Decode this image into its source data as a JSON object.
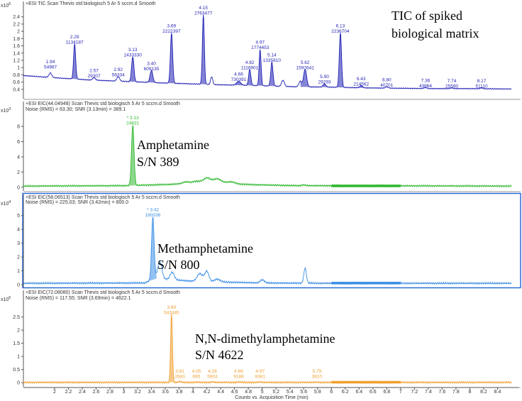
{
  "x_axis": {
    "label": "Counts vs. Acquisition Time (min)",
    "min": 1.55,
    "max": 8.6,
    "ticks": [
      "2",
      "2.2",
      "2.4",
      "2.6",
      "2.8",
      "3",
      "3.2",
      "3.4",
      "3.6",
      "3.8",
      "4",
      "4.2",
      "4.4",
      "4.6",
      "4.8",
      "5",
      "5.2",
      "5.4",
      "5.6",
      "5.8",
      "6",
      "6.2",
      "6.4",
      "6.6",
      "6.8",
      "7",
      "7.2",
      "7.4",
      "7.6",
      "7.8",
      "8",
      "8.2",
      "8.4"
    ]
  },
  "panels": [
    {
      "header": "+ESI TIC Scan Thevis std biologisch 5  Ar 5 sccm.d  Smooth",
      "noise": "",
      "exponent": "x10",
      "exponent_power": "6",
      "color": "#1f1fb4",
      "selected": false,
      "y_ticks": [
        "0.4",
        "0.6",
        "0.8",
        "1",
        "1.2",
        "1.4",
        "1.6",
        "1.8",
        "2",
        "2.2",
        "2.4"
      ],
      "annotation": [
        "TIC  of spiked",
        "biological matrix"
      ],
      "peak_labels": [
        {
          "rt": "1.94",
          "area": "54967"
        },
        {
          "rt": "2.29",
          "area": "1134187"
        },
        {
          "rt": "2.57",
          "area": "29307"
        },
        {
          "rt": "2.92",
          "area": "56334"
        },
        {
          "rt": "3.13",
          "area": "1433330"
        },
        {
          "rt": "3.40",
          "area": "609135"
        },
        {
          "rt": "3.69",
          "area": "2222397"
        },
        {
          "rt": "4.15",
          "area": "2763477"
        },
        {
          "rt": "4.66",
          "area": "730391"
        },
        {
          "rt": "4.82",
          "area": "1116901"
        },
        {
          "rt": "4.97",
          "area": "1774453"
        },
        {
          "rt": "5.14",
          "area": "1335810"
        },
        {
          "rt": "5.62",
          "area": "1592641"
        },
        {
          "rt": "5.90",
          "area": "29293"
        },
        {
          "rt": "6.13",
          "area": "2236704"
        },
        {
          "rt": "6.43",
          "area": "214562"
        },
        {
          "rt": "6.80",
          "area": "40701"
        },
        {
          "rt": "7.36",
          "area": "43864"
        },
        {
          "rt": "7.74",
          "area": "25590"
        },
        {
          "rt": "8.17",
          "area": "51110"
        }
      ]
    },
    {
      "header": "+ESI EIC(44.04948) Scan Thevis std biologisch 5  Ar 5 sccm.d  Smooth",
      "noise": "Noise (RMS) = 63.30; SNR (3.13min) = 389.1",
      "exponent": "x10",
      "exponent_power": "3",
      "color": "#2db82d",
      "selected": false,
      "y_ticks": [
        "0",
        "2",
        "4",
        "6",
        "8"
      ],
      "annotation": [
        "Amphetamine",
        "S/N 389"
      ],
      "peak_labels": [
        {
          "rt": "* 3.13",
          "area": "24631"
        }
      ]
    },
    {
      "header": "+ESI EIC(58.06513) Scan Thevis std biologisch 5  Ar 5 sccm.d  Smooth",
      "noise": "Noise (RMS) = 225.03; SNR (3.42min) = 800.0",
      "exponent": "x10",
      "exponent_power": "4",
      "color": "#3a8ee6",
      "selected": true,
      "y_ticks": [
        "0",
        "1",
        "2",
        "3",
        "4",
        "5"
      ],
      "annotation": [
        "Methamphetamine",
        "S/N 800"
      ],
      "peak_labels": [
        {
          "rt": "* 3.42",
          "area": "180036"
        }
      ]
    },
    {
      "header": "+ESI EIC(72.08080) Scan Thevis std biologisch 5  Ar 5 sccm.d  Smooth",
      "noise": "Noise (RMS) = 117.55; SNR (3.69min) = 4622.1",
      "exponent": "x10",
      "exponent_power": "5",
      "color": "#f0a030",
      "selected": false,
      "y_ticks": [
        "0",
        "0.5",
        "1",
        "1.5",
        "2",
        "2.5"
      ],
      "annotation": [
        "N,N-dimethylamphetamine",
        "S/N 4622"
      ],
      "peak_labels": [
        {
          "rt": "3.69",
          "area": "543345"
        },
        {
          "rt": "3.81",
          "area": "2683"
        },
        {
          "rt": "4.05",
          "area": "895"
        },
        {
          "rt": "4.28",
          "area": "5903"
        },
        {
          "rt": "4.66",
          "area": "9188"
        },
        {
          "rt": "4.97",
          "area": "9381"
        },
        {
          "rt": "5.79",
          "area": "3810"
        }
      ]
    }
  ],
  "chart_data": [
    {
      "type": "line",
      "title": "TIC  of spiked biological matrix",
      "xlabel": "Counts vs. Acquisition Time (min)",
      "ylabel": "",
      "y_unit": "x10^6",
      "ylim": [
        0.3,
        2.55
      ],
      "xlim": [
        1.55,
        8.6
      ],
      "baseline": [
        [
          1.55,
          0.78
        ],
        [
          2.0,
          0.72
        ],
        [
          2.5,
          0.66
        ],
        [
          3.0,
          0.62
        ],
        [
          3.5,
          0.58
        ],
        [
          4.0,
          0.55
        ],
        [
          4.5,
          0.52
        ],
        [
          5.0,
          0.5
        ],
        [
          5.5,
          0.47
        ],
        [
          6.0,
          0.46
        ],
        [
          6.5,
          0.44
        ],
        [
          7.0,
          0.43
        ],
        [
          7.5,
          0.42
        ],
        [
          8.0,
          0.42
        ],
        [
          8.6,
          0.41
        ]
      ],
      "peaks": [
        {
          "x": 1.94,
          "y": 0.85,
          "w": 0.02
        },
        {
          "x": 2.29,
          "y": 1.65,
          "w": 0.015
        },
        {
          "x": 2.57,
          "y": 0.72,
          "w": 0.02
        },
        {
          "x": 2.92,
          "y": 0.75,
          "w": 0.02
        },
        {
          "x": 3.13,
          "y": 1.3,
          "w": 0.017
        },
        {
          "x": 3.4,
          "y": 0.92,
          "w": 0.02
        },
        {
          "x": 3.69,
          "y": 1.95,
          "w": 0.016
        },
        {
          "x": 4.15,
          "y": 2.45,
          "w": 0.014
        },
        {
          "x": 4.27,
          "y": 0.75,
          "w": 0.015
        },
        {
          "x": 4.66,
          "y": 0.62,
          "w": 0.03
        },
        {
          "x": 4.82,
          "y": 0.95,
          "w": 0.016
        },
        {
          "x": 4.97,
          "y": 1.5,
          "w": 0.014
        },
        {
          "x": 5.14,
          "y": 1.15,
          "w": 0.016
        },
        {
          "x": 5.3,
          "y": 0.65,
          "w": 0.02
        },
        {
          "x": 5.55,
          "y": 0.62,
          "w": 0.02
        },
        {
          "x": 5.62,
          "y": 0.95,
          "w": 0.022
        },
        {
          "x": 5.9,
          "y": 0.55,
          "w": 0.02
        },
        {
          "x": 6.13,
          "y": 1.95,
          "w": 0.016
        },
        {
          "x": 6.43,
          "y": 0.5,
          "w": 0.02
        },
        {
          "x": 6.8,
          "y": 0.47,
          "w": 0.02
        },
        {
          "x": 7.36,
          "y": 0.45,
          "w": 0.02
        },
        {
          "x": 7.74,
          "y": 0.44,
          "w": 0.02
        },
        {
          "x": 8.17,
          "y": 0.44,
          "w": 0.02
        }
      ],
      "shaded_peaks": [
        2.29,
        3.13,
        3.4,
        3.69,
        4.15,
        4.66,
        4.82,
        4.97,
        5.14,
        5.62,
        5.9,
        6.13,
        6.43
      ]
    },
    {
      "type": "line",
      "title": "Amphetamine",
      "y_unit": "x10^3",
      "ylim": [
        -0.3,
        9.6
      ],
      "xlim": [
        1.55,
        8.6
      ],
      "baseline": [
        [
          1.55,
          0.15
        ],
        [
          3.0,
          0.2
        ],
        [
          3.6,
          0.35
        ],
        [
          4.2,
          0.6
        ],
        [
          4.8,
          0.35
        ],
        [
          5.5,
          0.2
        ],
        [
          6.0,
          0.2
        ],
        [
          8.6,
          0.15
        ]
      ],
      "peaks": [
        {
          "x": 3.13,
          "y": 8.2,
          "w": 0.018
        },
        {
          "x": 3.9,
          "y": 0.7,
          "w": 0.05
        },
        {
          "x": 4.05,
          "y": 0.8,
          "w": 0.05
        },
        {
          "x": 4.2,
          "y": 1.2,
          "w": 0.05
        },
        {
          "x": 4.35,
          "y": 1.1,
          "w": 0.06
        },
        {
          "x": 4.55,
          "y": 0.7,
          "w": 0.06
        },
        {
          "x": 5.6,
          "y": 0.3,
          "w": 0.03
        }
      ],
      "shaded_peaks": [
        3.13
      ],
      "noise_window": [
        6.0,
        7.0
      ]
    },
    {
      "type": "line",
      "title": "Methamphetamine",
      "y_unit": "x10^4",
      "ylim": [
        -0.1,
        5.6
      ],
      "xlim": [
        1.55,
        8.6
      ],
      "baseline": [
        [
          1.55,
          0.1
        ],
        [
          3.3,
          0.12
        ],
        [
          3.45,
          0.45
        ],
        [
          3.7,
          0.35
        ],
        [
          4.0,
          0.25
        ],
        [
          4.5,
          0.18
        ],
        [
          5.0,
          0.12
        ],
        [
          6.0,
          0.1
        ],
        [
          8.6,
          0.1
        ]
      ],
      "peaks": [
        {
          "x": 3.42,
          "y": 4.9,
          "w": 0.018
        },
        {
          "x": 3.52,
          "y": 1.7,
          "w": 0.03
        },
        {
          "x": 3.7,
          "y": 0.9,
          "w": 0.03
        },
        {
          "x": 4.1,
          "y": 0.8,
          "w": 0.04
        },
        {
          "x": 4.2,
          "y": 0.95,
          "w": 0.03
        },
        {
          "x": 4.35,
          "y": 0.4,
          "w": 0.04
        },
        {
          "x": 5.0,
          "y": 0.35,
          "w": 0.03
        },
        {
          "x": 5.62,
          "y": 1.2,
          "w": 0.018
        }
      ],
      "shaded_peaks": [
        3.42
      ],
      "noise_window": [
        6.0,
        7.0
      ]
    },
    {
      "type": "line",
      "title": "N,N-dimethylamphetamine",
      "y_unit": "x10^5",
      "ylim": [
        -0.05,
        2.95
      ],
      "xlim": [
        1.55,
        8.6
      ],
      "baseline": [
        [
          1.55,
          0.01
        ],
        [
          8.6,
          0.01
        ]
      ],
      "peaks": [
        {
          "x": 3.69,
          "y": 2.6,
          "w": 0.013
        },
        {
          "x": 3.81,
          "y": 0.04,
          "w": 0.02
        },
        {
          "x": 4.05,
          "y": 0.02,
          "w": 0.02
        },
        {
          "x": 4.28,
          "y": 0.03,
          "w": 0.02
        },
        {
          "x": 4.66,
          "y": 0.03,
          "w": 0.02
        },
        {
          "x": 4.97,
          "y": 0.03,
          "w": 0.02
        },
        {
          "x": 5.79,
          "y": 0.02,
          "w": 0.02
        }
      ],
      "shaded_peaks": [
        3.69
      ],
      "noise_window": [
        6.0,
        7.0
      ]
    }
  ]
}
